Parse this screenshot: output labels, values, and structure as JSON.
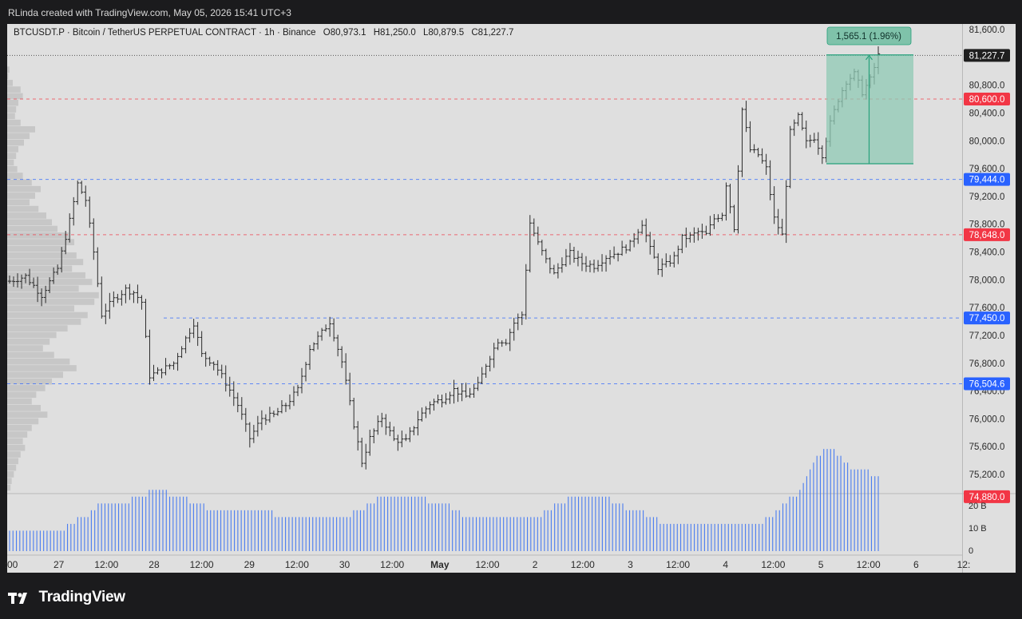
{
  "topbar": {
    "credit": "RLinda created with TradingView.com, May 05, 2026 15:41 UTC+3"
  },
  "legend": {
    "symbol_line": "BTCUSDT.P · Bitcoin / TetherUS PERPETUAL CONTRACT · 1h · Binance",
    "open": "O80,973.1",
    "high": "H81,250.0",
    "low": "L80,879.5",
    "close": "C81,227.7"
  },
  "footer": {
    "brand": "TradingView"
  },
  "colors": {
    "background": "#dfdfdf",
    "candle": "#2b2b2b",
    "blue_level": "#2962ff",
    "red_level": "#f23645",
    "volume": "#4a7cf0",
    "measure_fill": "#8fc9b4",
    "measure_border": "#26a17b"
  },
  "chart_data": {
    "type": "candlestick",
    "y_range": [
      74880,
      81700
    ],
    "y_ticks": [
      "81,600.0",
      "80,800.0",
      "80,400.0",
      "80,000.0",
      "79,600.0",
      "79,200.0",
      "78,800.0",
      "78,400.0",
      "78,000.0",
      "77,600.0",
      "77,200.0",
      "76,800.0",
      "76,400.0",
      "76,000.0",
      "75,600.0",
      "75,200.0"
    ],
    "x_ticks": [
      ":00",
      "27",
      "12:00",
      "28",
      "12:00",
      "29",
      "12:00",
      "30",
      "12:00",
      "May",
      "12:00",
      "2",
      "12:00",
      "3",
      "12:00",
      "4",
      "12:00",
      "5",
      "12:00",
      "6",
      "12:"
    ],
    "last_price": {
      "label": "81,227.7",
      "value": 81227.7
    },
    "levels": [
      {
        "label": "80,600.0",
        "value": 80600,
        "kind": "red"
      },
      {
        "label": "79,444.0",
        "value": 79444,
        "kind": "blue"
      },
      {
        "label": "78,648.0",
        "value": 78648,
        "kind": "red"
      },
      {
        "label": "77,450.0",
        "value": 77450,
        "kind": "blue"
      },
      {
        "label": "76,504.6",
        "value": 76504.6,
        "kind": "blue"
      },
      {
        "label": "74,880.0",
        "value": 74880,
        "kind": "red"
      }
    ],
    "measure": {
      "label": "1,565.1 (1.96%)",
      "from": 79670,
      "to": 81235
    },
    "price_path": [
      [
        0,
        77980
      ],
      [
        4,
        78050
      ],
      [
        8,
        77780
      ],
      [
        12,
        78160
      ],
      [
        15,
        78850
      ],
      [
        17,
        79380
      ],
      [
        19,
        79150
      ],
      [
        21,
        78400
      ],
      [
        23,
        77500
      ],
      [
        26,
        77720
      ],
      [
        29,
        77860
      ],
      [
        31,
        77820
      ],
      [
        33,
        77680
      ],
      [
        35,
        76620
      ],
      [
        38,
        76700
      ],
      [
        41,
        76800
      ],
      [
        43,
        77040
      ],
      [
        46,
        77380
      ],
      [
        48,
        76920
      ],
      [
        51,
        76800
      ],
      [
        54,
        76520
      ],
      [
        57,
        76200
      ],
      [
        60,
        75720
      ],
      [
        63,
        76010
      ],
      [
        66,
        76050
      ],
      [
        69,
        76200
      ],
      [
        72,
        76420
      ],
      [
        75,
        77020
      ],
      [
        78,
        77240
      ],
      [
        80,
        77400
      ],
      [
        83,
        76820
      ],
      [
        86,
        75920
      ],
      [
        88,
        75380
      ],
      [
        90,
        75720
      ],
      [
        93,
        76020
      ],
      [
        96,
        75700
      ],
      [
        99,
        75680
      ],
      [
        102,
        76000
      ],
      [
        105,
        76220
      ],
      [
        108,
        76280
      ],
      [
        111,
        76420
      ],
      [
        114,
        76320
      ],
      [
        117,
        76480
      ],
      [
        119,
        76780
      ],
      [
        122,
        77130
      ],
      [
        124,
        77120
      ],
      [
        126,
        77380
      ],
      [
        128,
        77500
      ],
      [
        130,
        78820
      ],
      [
        132,
        78520
      ],
      [
        134,
        78280
      ],
      [
        136,
        78080
      ],
      [
        138,
        78260
      ],
      [
        140,
        78380
      ],
      [
        143,
        78240
      ],
      [
        146,
        78200
      ],
      [
        149,
        78330
      ],
      [
        152,
        78400
      ],
      [
        155,
        78510
      ],
      [
        158,
        78820
      ],
      [
        160,
        78440
      ],
      [
        162,
        78180
      ],
      [
        164,
        78220
      ],
      [
        166,
        78320
      ],
      [
        168,
        78600
      ],
      [
        170,
        78620
      ],
      [
        172,
        78690
      ],
      [
        174,
        78650
      ],
      [
        176,
        78880
      ],
      [
        178,
        78950
      ],
      [
        179,
        79380
      ],
      [
        181,
        78750
      ],
      [
        183,
        80450
      ],
      [
        185,
        79870
      ],
      [
        187,
        79800
      ],
      [
        189,
        79600
      ],
      [
        191,
        78880
      ],
      [
        193,
        78640
      ],
      [
        195,
        80120
      ],
      [
        197,
        80340
      ],
      [
        199,
        79970
      ],
      [
        201,
        80050
      ],
      [
        203,
        79800
      ],
      [
        205,
        80250
      ],
      [
        207,
        80600
      ],
      [
        209,
        80860
      ],
      [
        211,
        80960
      ],
      [
        213,
        80700
      ],
      [
        215,
        80880
      ],
      [
        217,
        81227
      ]
    ],
    "volume_profile": [
      0,
      2,
      1,
      5,
      12,
      14,
      10,
      8,
      7,
      12,
      25,
      20,
      15,
      10,
      8,
      6,
      9,
      14,
      22,
      30,
      25,
      20,
      28,
      35,
      40,
      45,
      55,
      60,
      52,
      62,
      68,
      58,
      70,
      76,
      64,
      82,
      78,
      60,
      72,
      66,
      54,
      44,
      38,
      32,
      42,
      56,
      62,
      50,
      40,
      34,
      26,
      22,
      30,
      36,
      28,
      22,
      18,
      14,
      16,
      12,
      10,
      8,
      6,
      4,
      3
    ],
    "volume_axis": [
      "20 B",
      "10 B",
      "0"
    ],
    "volume": [
      3,
      3,
      3,
      3,
      3,
      3,
      3,
      3,
      3,
      3,
      3,
      3,
      3,
      3,
      3,
      3,
      3,
      4,
      4,
      4,
      5,
      5,
      5,
      5,
      6,
      6,
      7,
      7,
      7,
      7,
      7,
      7,
      7,
      7,
      7,
      7,
      8,
      8,
      8,
      8,
      8,
      9,
      9,
      9,
      9,
      9,
      9,
      8,
      8,
      8,
      8,
      8,
      8,
      7,
      7,
      7,
      7,
      7,
      6,
      6,
      6,
      6,
      6,
      6,
      6,
      6,
      6,
      6,
      6,
      6,
      6,
      6,
      6,
      6,
      6,
      6,
      6,
      6,
      5,
      5,
      5,
      5,
      5,
      5,
      5,
      5,
      5,
      5,
      5,
      5,
      5,
      5,
      5,
      5,
      5,
      5,
      5,
      5,
      5,
      5,
      5,
      6,
      6,
      6,
      6,
      7,
      7,
      7,
      8,
      8,
      8,
      8,
      8,
      8,
      8,
      8,
      8,
      8,
      8,
      8,
      8,
      8,
      8,
      7,
      7,
      7,
      7,
      7,
      7,
      7,
      6,
      6,
      6,
      5,
      5,
      5,
      5,
      5,
      5,
      5,
      5,
      5,
      5,
      5,
      5,
      5,
      5,
      5,
      5,
      5,
      5,
      5,
      5,
      5,
      5,
      5,
      5,
      6,
      6,
      6,
      7,
      7,
      7,
      7,
      8,
      8,
      8,
      8,
      8,
      8,
      8,
      8,
      8,
      8,
      8,
      8,
      8,
      7,
      7,
      7,
      7,
      6,
      6,
      6,
      6,
      6,
      6,
      5,
      5,
      5,
      5,
      4,
      4,
      4,
      4,
      4,
      4,
      4,
      4,
      4,
      4,
      4,
      4,
      4,
      4,
      4,
      4,
      4,
      4,
      4,
      4,
      4,
      4,
      4,
      4,
      4,
      4,
      4,
      4,
      4,
      4,
      4,
      5,
      5,
      5,
      6,
      6,
      7,
      7,
      8,
      8,
      8,
      9,
      10,
      11,
      12,
      13,
      14,
      14,
      15,
      15,
      15,
      15,
      14,
      14,
      13,
      13,
      12,
      12,
      12,
      12,
      12,
      12,
      11,
      11,
      11
    ]
  }
}
